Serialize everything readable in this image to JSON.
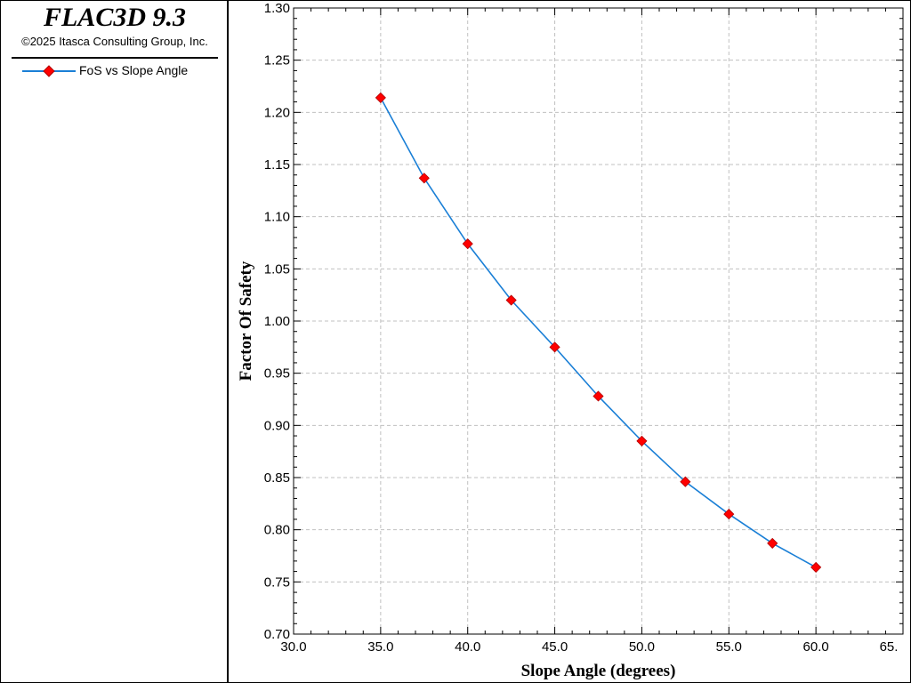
{
  "app": {
    "title": "FLAC3D 9.3",
    "copyright": "©2025 Itasca Consulting Group, Inc."
  },
  "colors": {
    "series_line": "#1a7fd6",
    "marker_fill": "#ff0000",
    "marker_stroke": "#b00000",
    "grid": "#c0c0c0"
  },
  "chart_data": {
    "type": "line",
    "title": "",
    "xlabel": "Slope Angle (degrees)",
    "ylabel": "Factor Of Safety",
    "xlim": [
      30.0,
      65.0
    ],
    "ylim": [
      0.7,
      1.3
    ],
    "x_ticks": [
      "30.0",
      "35.0",
      "40.0",
      "45.0",
      "50.0",
      "55.0",
      "60.0",
      "65."
    ],
    "y_ticks": [
      "0.70",
      "0.75",
      "0.80",
      "0.85",
      "0.90",
      "0.95",
      "1.00",
      "1.05",
      "1.10",
      "1.15",
      "1.20",
      "1.25",
      "1.30"
    ],
    "grid": true,
    "legend_position": "left panel",
    "series": [
      {
        "name": "FoS vs Slope Angle",
        "x": [
          35.0,
          37.5,
          40.0,
          42.5,
          45.0,
          47.5,
          50.0,
          52.5,
          55.0,
          57.5,
          60.0
        ],
        "y": [
          1.214,
          1.137,
          1.074,
          1.02,
          0.975,
          0.928,
          0.885,
          0.846,
          0.815,
          0.787,
          0.764
        ]
      }
    ]
  }
}
